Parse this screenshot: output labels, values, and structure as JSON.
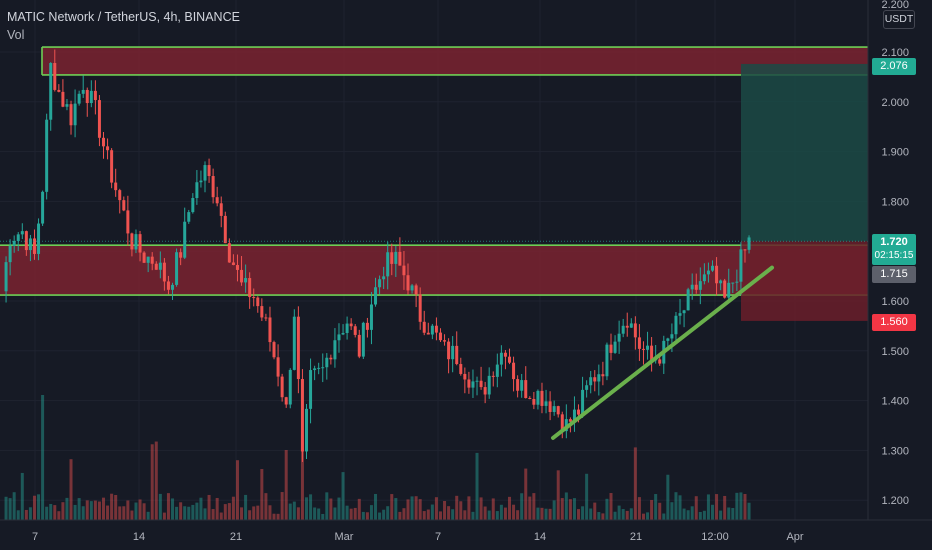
{
  "header": {
    "symbol_line": "MATIC Network / TetherUS, 4h, BINANCE",
    "indicator": "Vol",
    "currency": "USDT"
  },
  "colors": {
    "background": "#161a25",
    "up": "#26a69a",
    "down": "#ef5350",
    "zone_line": "#6ece55",
    "zone_fill": "#7a2330",
    "target_fill": "#1b4a45",
    "stop_fill": "#6a1f2a",
    "trendline": "#6ab04c"
  },
  "chart_data": {
    "type": "candlestick",
    "interval": "4h",
    "ylim": [
      1.16,
      2.18
    ],
    "y_ticks": [
      "2.100",
      "2.000",
      "1.900",
      "1.800",
      "1.700",
      "1.600",
      "1.500",
      "1.400",
      "1.300",
      "1.200"
    ],
    "y_ticks_partial_top": "2.200",
    "x_ticks": [
      "7",
      "14",
      "21",
      "Mar",
      "7",
      "14",
      "21",
      "12:00",
      "Apr"
    ],
    "price_labels": {
      "target": "2.076",
      "last": "1.720",
      "countdown": "02:15:15",
      "level": "1.715",
      "stop": "1.560"
    },
    "zones": [
      {
        "name": "resistance",
        "top": 2.11,
        "bottom": 2.054
      },
      {
        "name": "support",
        "top": 1.712,
        "bottom": 1.612
      }
    ],
    "position": {
      "entry": 1.72,
      "target": 2.076,
      "stop": 1.56
    },
    "trendline": {
      "from": 1.325,
      "to": 1.667
    },
    "price_path": [
      [
        0,
        1.62
      ],
      [
        2,
        1.73
      ],
      [
        5,
        1.74
      ],
      [
        8,
        1.69
      ],
      [
        10,
        1.83
      ],
      [
        12,
        2.07
      ],
      [
        14,
        2.02
      ],
      [
        17,
        1.97
      ],
      [
        20,
        2.04
      ],
      [
        23,
        1.98
      ],
      [
        26,
        1.88
      ],
      [
        29,
        1.8
      ],
      [
        32,
        1.72
      ],
      [
        35,
        1.69
      ],
      [
        38,
        1.68
      ],
      [
        41,
        1.63
      ],
      [
        44,
        1.7
      ],
      [
        47,
        1.82
      ],
      [
        50,
        1.86
      ],
      [
        53,
        1.81
      ],
      [
        56,
        1.7
      ],
      [
        59,
        1.63
      ],
      [
        62,
        1.61
      ],
      [
        65,
        1.55
      ],
      [
        68,
        1.46
      ],
      [
        70,
        1.38
      ],
      [
        72,
        1.58
      ],
      [
        74,
        1.28
      ],
      [
        76,
        1.44
      ],
      [
        79,
        1.46
      ],
      [
        82,
        1.53
      ],
      [
        85,
        1.56
      ],
      [
        88,
        1.5
      ],
      [
        91,
        1.6
      ],
      [
        94,
        1.67
      ],
      [
        97,
        1.68
      ],
      [
        100,
        1.64
      ],
      [
        103,
        1.57
      ],
      [
        106,
        1.54
      ],
      [
        109,
        1.5
      ],
      [
        112,
        1.49
      ],
      [
        115,
        1.45
      ],
      [
        118,
        1.41
      ],
      [
        121,
        1.47
      ],
      [
        124,
        1.51
      ],
      [
        127,
        1.43
      ],
      [
        130,
        1.42
      ],
      [
        133,
        1.41
      ],
      [
        136,
        1.39
      ],
      [
        139,
        1.35
      ],
      [
        142,
        1.38
      ],
      [
        145,
        1.44
      ],
      [
        148,
        1.47
      ],
      [
        151,
        1.54
      ],
      [
        154,
        1.57
      ],
      [
        157,
        1.51
      ],
      [
        160,
        1.48
      ],
      [
        163,
        1.5
      ],
      [
        166,
        1.55
      ],
      [
        169,
        1.6
      ],
      [
        172,
        1.64
      ],
      [
        175,
        1.65
      ],
      [
        178,
        1.6
      ],
      [
        181,
        1.66
      ],
      [
        184,
        1.72
      ]
    ]
  }
}
